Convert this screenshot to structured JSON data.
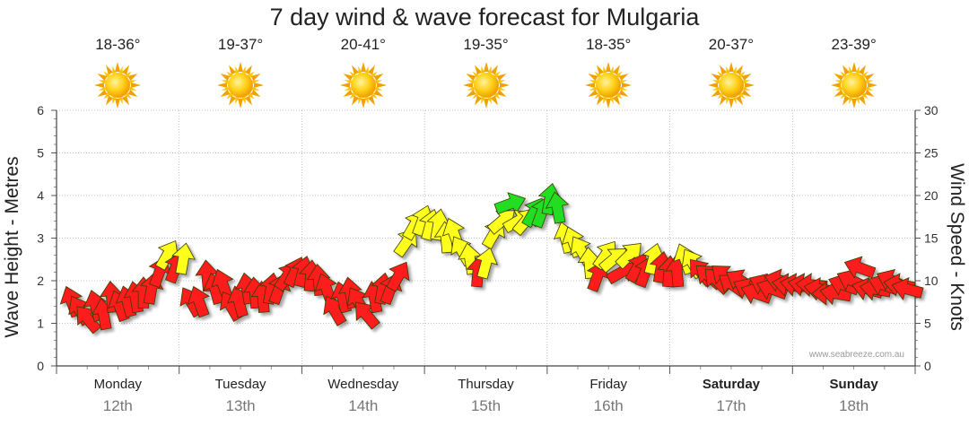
{
  "chart_data": {
    "type": "arrow-timeseries",
    "title": "7 day wind & wave forecast for Mulgaria",
    "ylabel_left": "Wave Height - Metres",
    "ylabel_right": "Wind Speed - Knots",
    "ylim_left": [
      0,
      6
    ],
    "ylim_right": [
      0,
      30
    ],
    "yticks_left": [
      "0",
      "1",
      "2",
      "3",
      "4",
      "5",
      "6"
    ],
    "yticks_right": [
      "0",
      "5",
      "10",
      "15",
      "20",
      "25",
      "30"
    ],
    "grid": true,
    "credit": "www.seabreeze.com.au",
    "days": [
      {
        "name": "Monday",
        "date": "12th",
        "temp": "18-36°",
        "bold": false
      },
      {
        "name": "Tuesday",
        "date": "13th",
        "temp": "19-37°",
        "bold": false
      },
      {
        "name": "Wednesday",
        "date": "14th",
        "temp": "20-41°",
        "bold": false
      },
      {
        "name": "Thursday",
        "date": "15th",
        "temp": "19-35°",
        "bold": false
      },
      {
        "name": "Friday",
        "date": "16th",
        "temp": "18-35°",
        "bold": false
      },
      {
        "name": "Saturday",
        "date": "17th",
        "temp": "20-37°",
        "bold": true
      },
      {
        "name": "Sunday",
        "date": "18th",
        "temp": "23-39°",
        "bold": true
      }
    ],
    "colors": {
      "low": "#ff1a1a",
      "mid": "#ffff1a",
      "high": "#22dd22"
    },
    "wind_knots": [
      7.5,
      6.5,
      5.5,
      7,
      6,
      8,
      7,
      7.5,
      8,
      8.5,
      9,
      11,
      13,
      11.5,
      12.5,
      7.5,
      7.5,
      10.5,
      9,
      9.5,
      7,
      7.5,
      9,
      8.5,
      8,
      9,
      9,
      10.5,
      11,
      11,
      10.5,
      10,
      9,
      6.5,
      8,
      8.5,
      7.5,
      6,
      8,
      9,
      9,
      10.5,
      14.5,
      16.5,
      17,
      16.5,
      16.5,
      15,
      15.5,
      13.5,
      12.5,
      11,
      12,
      15.5,
      17,
      19,
      17,
      17,
      18,
      18,
      19.5,
      18.5,
      15,
      14.5,
      13.5,
      12,
      10.5,
      13,
      12.5,
      11,
      13,
      11.5,
      11,
      12.5,
      11.5,
      11,
      11,
      12.5,
      12,
      11,
      10.5,
      10,
      10.5,
      9.5,
      10,
      9,
      8.5,
      9.5,
      9,
      10,
      9.5,
      9.5,
      9.5,
      9.5,
      9,
      8.5,
      8.5,
      9.5,
      10,
      11.5,
      9,
      9,
      9.5,
      10,
      9.5,
      9
    ],
    "wind_dir_deg": [
      160,
      150,
      140,
      165,
      170,
      175,
      160,
      165,
      170,
      180,
      190,
      200,
      210,
      200,
      190,
      150,
      160,
      175,
      165,
      160,
      150,
      165,
      170,
      175,
      175,
      190,
      200,
      215,
      205,
      195,
      185,
      175,
      160,
      150,
      165,
      170,
      150,
      140,
      170,
      190,
      200,
      210,
      215,
      210,
      200,
      195,
      190,
      175,
      160,
      150,
      170,
      185,
      195,
      210,
      230,
      250,
      240,
      220,
      210,
      200,
      190,
      170,
      165,
      160,
      150,
      175,
      200,
      215,
      230,
      240,
      225,
      210,
      200,
      195,
      190,
      185,
      175,
      160,
      150,
      140,
      130,
      135,
      130,
      125,
      120,
      115,
      110,
      115,
      110,
      105,
      100,
      100,
      100,
      95,
      100,
      90,
      100,
      110,
      115,
      110,
      105,
      100,
      110,
      115,
      100,
      105
    ]
  }
}
